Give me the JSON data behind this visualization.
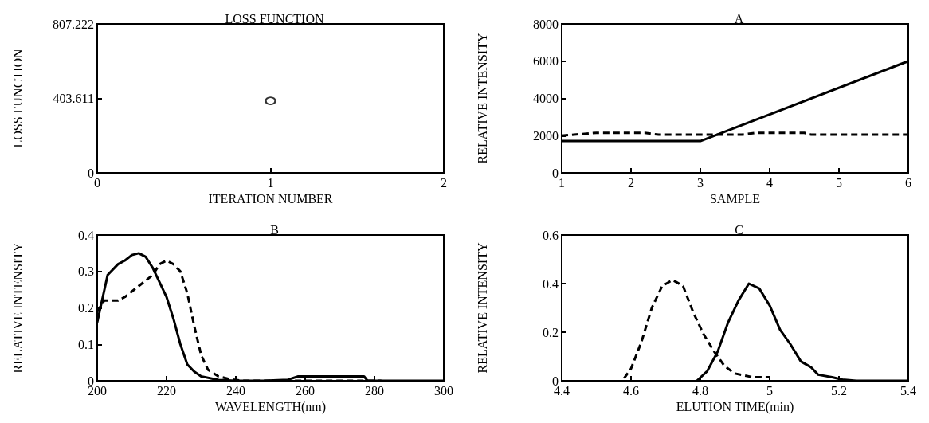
{
  "chart_data": [
    {
      "type": "scatter",
      "title": "LOSS FUNCTION",
      "xlabel": "ITERATION NUMBER",
      "ylabel": "LOSS FUNCTION",
      "xlim": [
        0,
        2
      ],
      "xticks": [
        0,
        1,
        2
      ],
      "ylim": [
        0,
        807.222
      ],
      "yticks": [
        0,
        403.611,
        807.222
      ],
      "marker": "circle",
      "grid": false,
      "series": [
        {
          "color": "#000000",
          "x": [
            1
          ],
          "values": [
            390
          ]
        }
      ]
    },
    {
      "type": "line",
      "title": "A",
      "xlabel": "SAMPLE",
      "ylabel": "RELATIVE INTENSITY",
      "xlim": [
        1,
        6
      ],
      "xticks": [
        1,
        2,
        3,
        4,
        5,
        6
      ],
      "ylim": [
        0,
        8000
      ],
      "yticks": [
        0,
        2000,
        4000,
        6000,
        8000
      ],
      "grid": false,
      "series": [
        {
          "color": "#000000",
          "line_style": "solid",
          "x": [
            1,
            3,
            6
          ],
          "values": [
            1710,
            1710,
            6000
          ]
        },
        {
          "color": "#000000",
          "line_style": "dashed",
          "x": [
            1,
            1.5,
            2.2,
            2.4,
            3,
            3.6,
            3.8,
            4.5,
            4.6,
            6
          ],
          "values": [
            2000,
            2150,
            2150,
            2050,
            2050,
            2050,
            2150,
            2150,
            2050,
            2050
          ]
        }
      ]
    },
    {
      "type": "line",
      "title": "B",
      "xlabel": "WAVELENGTH(nm)",
      "ylabel": "RELATIVE INTENSITY",
      "xlim": [
        200,
        300
      ],
      "xticks": [
        200,
        220,
        240,
        260,
        280,
        300
      ],
      "ylim": [
        0,
        0.4
      ],
      "yticks": [
        0,
        0.1,
        0.2,
        0.3,
        0.4
      ],
      "grid": false,
      "series": [
        {
          "color": "#000000",
          "line_style": "solid",
          "x": [
            200,
            203,
            206,
            208,
            210,
            212,
            214,
            216,
            218,
            220,
            222,
            224,
            226,
            228,
            230,
            235,
            240,
            248,
            255,
            258,
            270,
            277,
            278,
            300
          ],
          "values": [
            0.16,
            0.29,
            0.32,
            0.33,
            0.345,
            0.35,
            0.34,
            0.31,
            0.27,
            0.23,
            0.17,
            0.1,
            0.045,
            0.025,
            0.012,
            0.002,
            0,
            0,
            0.003,
            0.012,
            0.012,
            0.012,
            0,
            0
          ]
        },
        {
          "color": "#000000",
          "line_style": "dashed",
          "x": [
            200,
            202,
            206,
            208,
            212,
            216,
            218,
            220,
            222,
            224,
            226,
            228,
            230,
            232,
            235,
            238,
            242,
            282
          ],
          "values": [
            0.19,
            0.22,
            0.22,
            0.23,
            0.26,
            0.29,
            0.32,
            0.33,
            0.32,
            0.3,
            0.24,
            0.15,
            0.07,
            0.03,
            0.012,
            0.005,
            0,
            0
          ]
        }
      ]
    },
    {
      "type": "line",
      "title": "C",
      "xlabel": "ELUTION TIME(min)",
      "ylabel": "RELATIVE INTENSITY",
      "xlim": [
        4.4,
        5.4
      ],
      "xticks": [
        4.4,
        4.6,
        4.8,
        5,
        5.2,
        5.4
      ],
      "ylim": [
        0,
        0.6
      ],
      "yticks": [
        0,
        0.2,
        0.4,
        0.6
      ],
      "grid": false,
      "series": [
        {
          "color": "#000000",
          "line_style": "solid",
          "x": [
            4.79,
            4.82,
            4.85,
            4.88,
            4.91,
            4.94,
            4.97,
            5,
            5.03,
            5.06,
            5.09,
            5.12,
            5.14,
            5.18,
            5.21,
            5.25,
            5.4
          ],
          "values": [
            0,
            0.04,
            0.12,
            0.24,
            0.33,
            0.4,
            0.38,
            0.31,
            0.21,
            0.15,
            0.08,
            0.055,
            0.025,
            0.015,
            0.005,
            0,
            0
          ]
        },
        {
          "color": "#000000",
          "line_style": "dashed",
          "x": [
            4.58,
            4.6,
            4.63,
            4.66,
            4.69,
            4.72,
            4.75,
            4.78,
            4.81,
            4.84,
            4.87,
            4.9,
            4.95,
            5
          ],
          "values": [
            0.01,
            0.05,
            0.16,
            0.3,
            0.39,
            0.415,
            0.39,
            0.28,
            0.19,
            0.12,
            0.06,
            0.03,
            0.015,
            0.015
          ]
        }
      ]
    }
  ]
}
